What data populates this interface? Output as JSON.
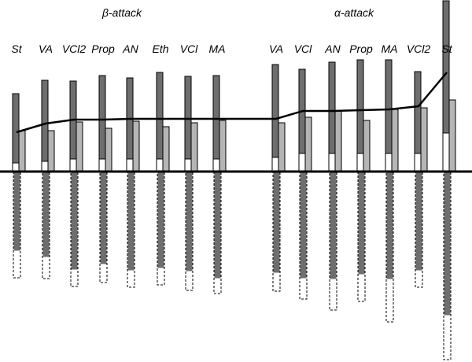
{
  "chart_data": {
    "type": "bar",
    "title": "",
    "xlabel": "",
    "ylabel": "",
    "groups": [
      {
        "name": "β-attack",
        "categories": [
          "St",
          "VA",
          "VCl2",
          "Prop",
          "AN",
          "Eth",
          "VCl",
          "MA"
        ],
        "upper_total": [
          99,
          116,
          115,
          122,
          119,
          126,
          121,
          122
        ],
        "upper_light": [
          52,
          52,
          63,
          55,
          64,
          57,
          62,
          65
        ],
        "upper_white": [
          11,
          13,
          16,
          16,
          16,
          16,
          16,
          16
        ],
        "lower_dark": [
          100,
          108,
          124,
          117,
          125,
          122,
          126,
          135
        ],
        "lower_dashed": [
          35,
          28,
          22,
          24,
          22,
          22,
          25,
          20
        ],
        "curve": [
          50,
          61,
          66,
          66,
          67,
          67,
          67,
          67
        ]
      },
      {
        "name": "α-attack",
        "categories": [
          "VA",
          "VCl",
          "AN",
          "Prop",
          "MA",
          "VCl2",
          "St"
        ],
        "upper_total": [
          136,
          130,
          139,
          142,
          142,
          127,
          217
        ],
        "upper_light": [
          62,
          69,
          77,
          65,
          79,
          81,
          91
        ],
        "upper_white": [
          18,
          23,
          23,
          23,
          23,
          23,
          49
        ],
        "lower_dark": [
          128,
          135,
          136,
          130,
          136,
          125,
          182
        ],
        "lower_dashed": [
          24,
          27,
          40,
          35,
          55,
          22,
          57
        ],
        "curve": [
          67,
          77,
          77,
          78,
          79,
          83,
          126
        ]
      }
    ]
  }
}
